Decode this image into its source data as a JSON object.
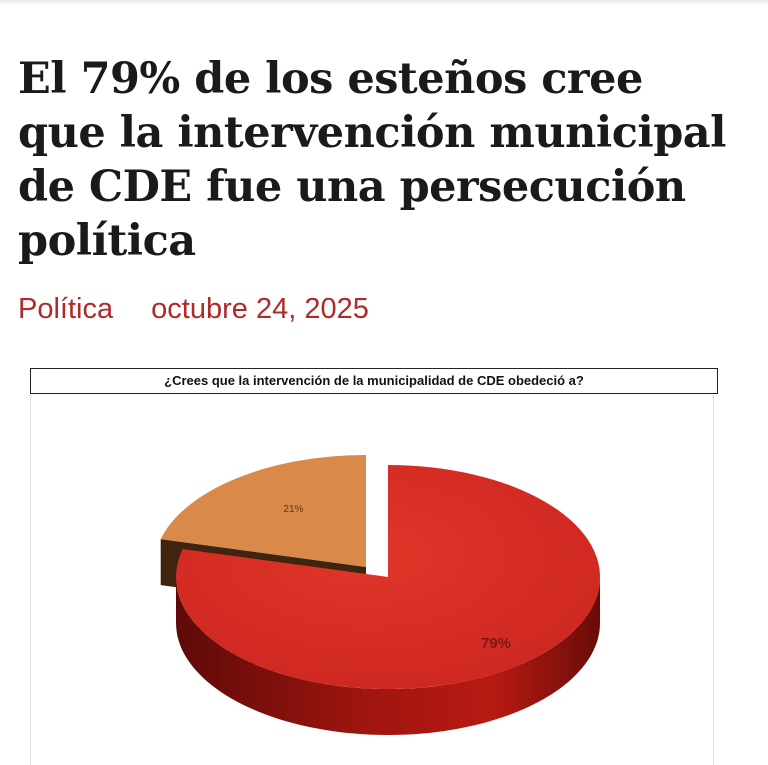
{
  "article": {
    "title": "El 79% de los esteños cree que la intervención municipal de CDE fue una persecución política",
    "category": "Política",
    "date": "octubre 24, 2025"
  },
  "colors": {
    "headline": "#1a1a1a",
    "meta": "#b02a2a",
    "slice_major": "#d42a22",
    "slice_minor": "#d9894a"
  },
  "chart_data": {
    "type": "pie",
    "title": "¿Crees que la intervención de la municipalidad de CDE obedeció a?",
    "style": "3d-exploded",
    "values": [
      79,
      21
    ],
    "labels": [
      "79%",
      "21%"
    ],
    "colors": [
      "#d42a22",
      "#d9894a"
    ],
    "legend": "none"
  }
}
